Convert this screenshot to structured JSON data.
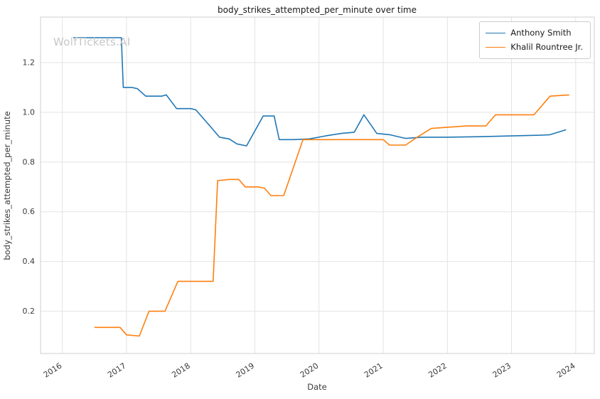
{
  "watermark": "WolfTickets.AI",
  "chart_data": {
    "type": "line",
    "title": "body_strikes_attempted_per_minute over time",
    "xlabel": "Date",
    "ylabel": "body_strikes_attempted_per_minute",
    "xlim": [
      2015.66,
      2024.29
    ],
    "ylim": [
      0.03,
      1.383
    ],
    "xticks": [
      2016,
      2017,
      2018,
      2019,
      2020,
      2021,
      2022,
      2023,
      2024
    ],
    "yticks": [
      0.2,
      0.4,
      0.6,
      0.8,
      1.0,
      1.2
    ],
    "grid": true,
    "legend_position": "upper right",
    "series": [
      {
        "name": "Anthony Smith",
        "color": "#1f77b4",
        "points": [
          [
            2016.17,
            1.3
          ],
          [
            2016.92,
            1.3
          ],
          [
            2016.95,
            1.1
          ],
          [
            2017.08,
            1.1
          ],
          [
            2017.17,
            1.095
          ],
          [
            2017.3,
            1.065
          ],
          [
            2017.55,
            1.065
          ],
          [
            2017.62,
            1.07
          ],
          [
            2017.78,
            1.015
          ],
          [
            2018.0,
            1.015
          ],
          [
            2018.08,
            1.01
          ],
          [
            2018.3,
            0.945
          ],
          [
            2018.45,
            0.9
          ],
          [
            2018.6,
            0.893
          ],
          [
            2018.72,
            0.873
          ],
          [
            2018.87,
            0.865
          ],
          [
            2019.0,
            0.925
          ],
          [
            2019.13,
            0.985
          ],
          [
            2019.3,
            0.985
          ],
          [
            2019.38,
            0.89
          ],
          [
            2019.6,
            0.89
          ],
          [
            2019.85,
            0.893
          ],
          [
            2020.1,
            0.905
          ],
          [
            2020.35,
            0.915
          ],
          [
            2020.55,
            0.92
          ],
          [
            2020.7,
            0.99
          ],
          [
            2020.9,
            0.915
          ],
          [
            2021.1,
            0.91
          ],
          [
            2021.35,
            0.895
          ],
          [
            2021.6,
            0.9
          ],
          [
            2022.0,
            0.9
          ],
          [
            2022.5,
            0.902
          ],
          [
            2023.0,
            0.905
          ],
          [
            2023.45,
            0.908
          ],
          [
            2023.6,
            0.91
          ],
          [
            2023.85,
            0.93
          ]
        ]
      },
      {
        "name": "Khalil Rountree Jr.",
        "color": "#ff7f0e",
        "points": [
          [
            2016.5,
            0.135
          ],
          [
            2016.9,
            0.135
          ],
          [
            2017.0,
            0.105
          ],
          [
            2017.2,
            0.1
          ],
          [
            2017.35,
            0.2
          ],
          [
            2017.6,
            0.2
          ],
          [
            2017.8,
            0.32
          ],
          [
            2018.0,
            0.32
          ],
          [
            2018.35,
            0.32
          ],
          [
            2018.42,
            0.725
          ],
          [
            2018.6,
            0.73
          ],
          [
            2018.75,
            0.73
          ],
          [
            2018.85,
            0.7
          ],
          [
            2019.05,
            0.7
          ],
          [
            2019.15,
            0.695
          ],
          [
            2019.25,
            0.665
          ],
          [
            2019.45,
            0.665
          ],
          [
            2019.75,
            0.89
          ],
          [
            2020.0,
            0.89
          ],
          [
            2020.5,
            0.89
          ],
          [
            2021.0,
            0.89
          ],
          [
            2021.1,
            0.868
          ],
          [
            2021.35,
            0.868
          ],
          [
            2021.5,
            0.895
          ],
          [
            2021.75,
            0.935
          ],
          [
            2022.0,
            0.94
          ],
          [
            2022.3,
            0.945
          ],
          [
            2022.6,
            0.945
          ],
          [
            2022.75,
            0.99
          ],
          [
            2023.0,
            0.99
          ],
          [
            2023.35,
            0.99
          ],
          [
            2023.6,
            1.065
          ],
          [
            2023.9,
            1.07
          ]
        ]
      }
    ]
  }
}
